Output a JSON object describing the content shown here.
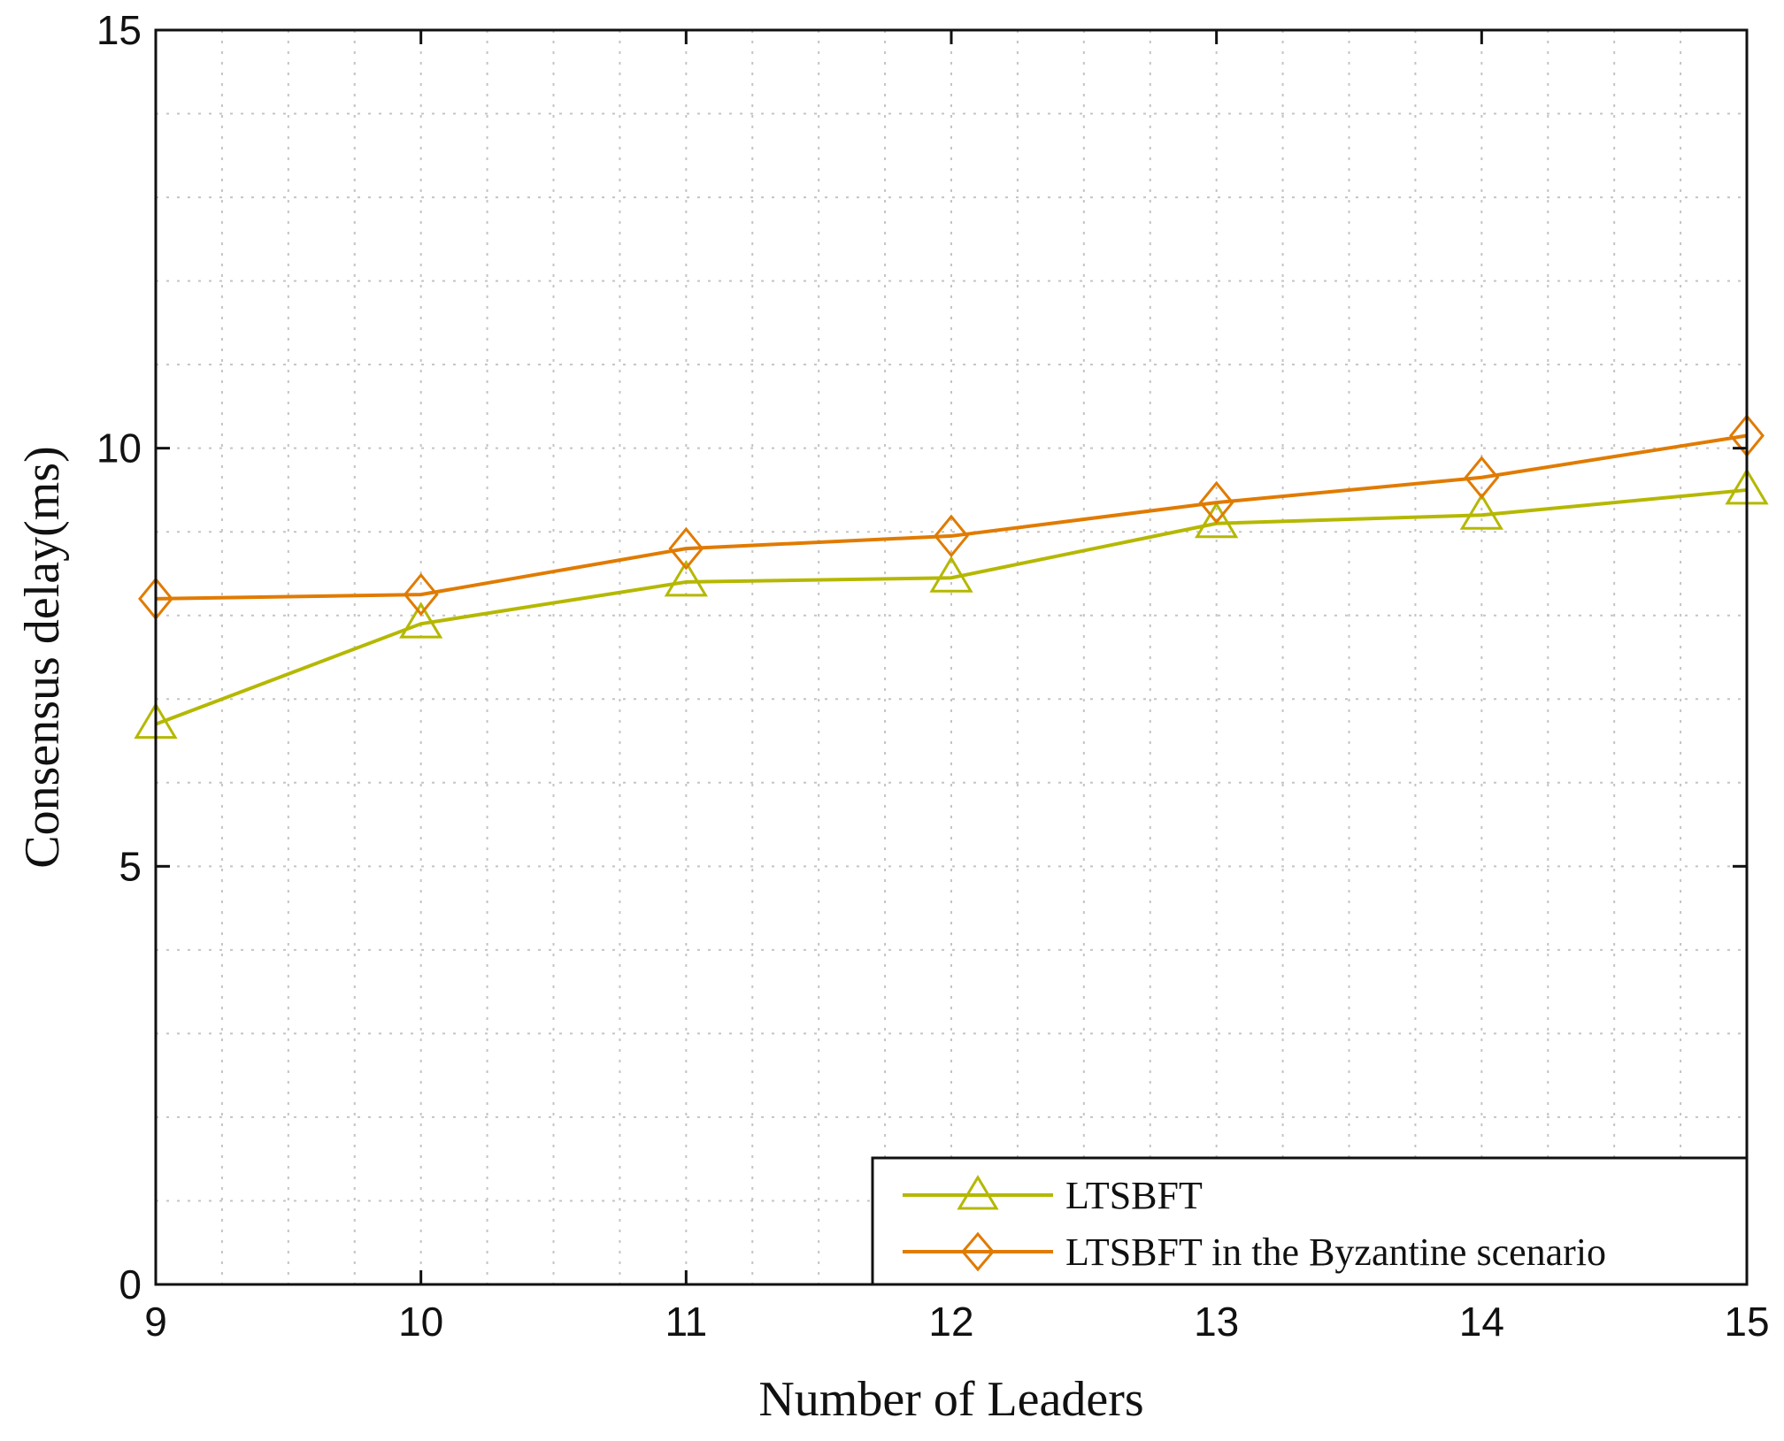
{
  "chart_data": {
    "type": "line",
    "xlabel": "Number of Leaders",
    "ylabel": "Consensus delay(ms)",
    "x": [
      9,
      10,
      11,
      12,
      13,
      14,
      15
    ],
    "xlim": [
      9,
      15
    ],
    "ylim": [
      0,
      15
    ],
    "xticks": [
      9,
      10,
      11,
      12,
      13,
      14,
      15
    ],
    "yticks": [
      0,
      5,
      10,
      15
    ],
    "grid": true,
    "legend_position": "bottom-right",
    "series": [
      {
        "name": "LTSBFT",
        "values": [
          6.7,
          7.9,
          8.4,
          8.45,
          9.1,
          9.2,
          9.5
        ],
        "color": "#b5b800",
        "marker": "triangle"
      },
      {
        "name": "LTSBFT in the Byzantine scenario",
        "values": [
          8.2,
          8.25,
          8.8,
          8.95,
          9.35,
          9.65,
          10.15
        ],
        "color": "#e07b00",
        "marker": "diamond"
      }
    ]
  }
}
